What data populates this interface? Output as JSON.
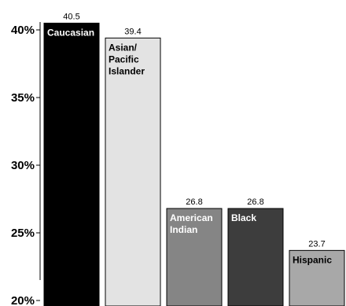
{
  "chart_data": {
    "type": "bar",
    "categories": [
      "Caucasian",
      "Asian/\nPacific\nIslander",
      "American\nIndian",
      "Black",
      "Hispanic"
    ],
    "values": [
      40.5,
      39.4,
      26.8,
      26.8,
      23.7
    ],
    "value_labels": [
      "40.5",
      "39.4",
      "26.8",
      "26.8",
      "23.7"
    ],
    "ylim": [
      20,
      40
    ],
    "yticks": [
      20,
      25,
      30,
      35,
      40
    ],
    "ytick_labels": [
      "20%",
      "25%",
      "30%",
      "35%",
      "40%"
    ],
    "bar_colors": [
      "#000000",
      "#e3e3e3",
      "#858585",
      "#3d3d3d",
      "#a8a8a8"
    ],
    "label_colors": [
      "#ffffff",
      "#000000",
      "#ffffff",
      "#ffffff",
      "#000000"
    ],
    "title": "",
    "xlabel": "",
    "ylabel": "",
    "grid": false,
    "legend": "none"
  }
}
